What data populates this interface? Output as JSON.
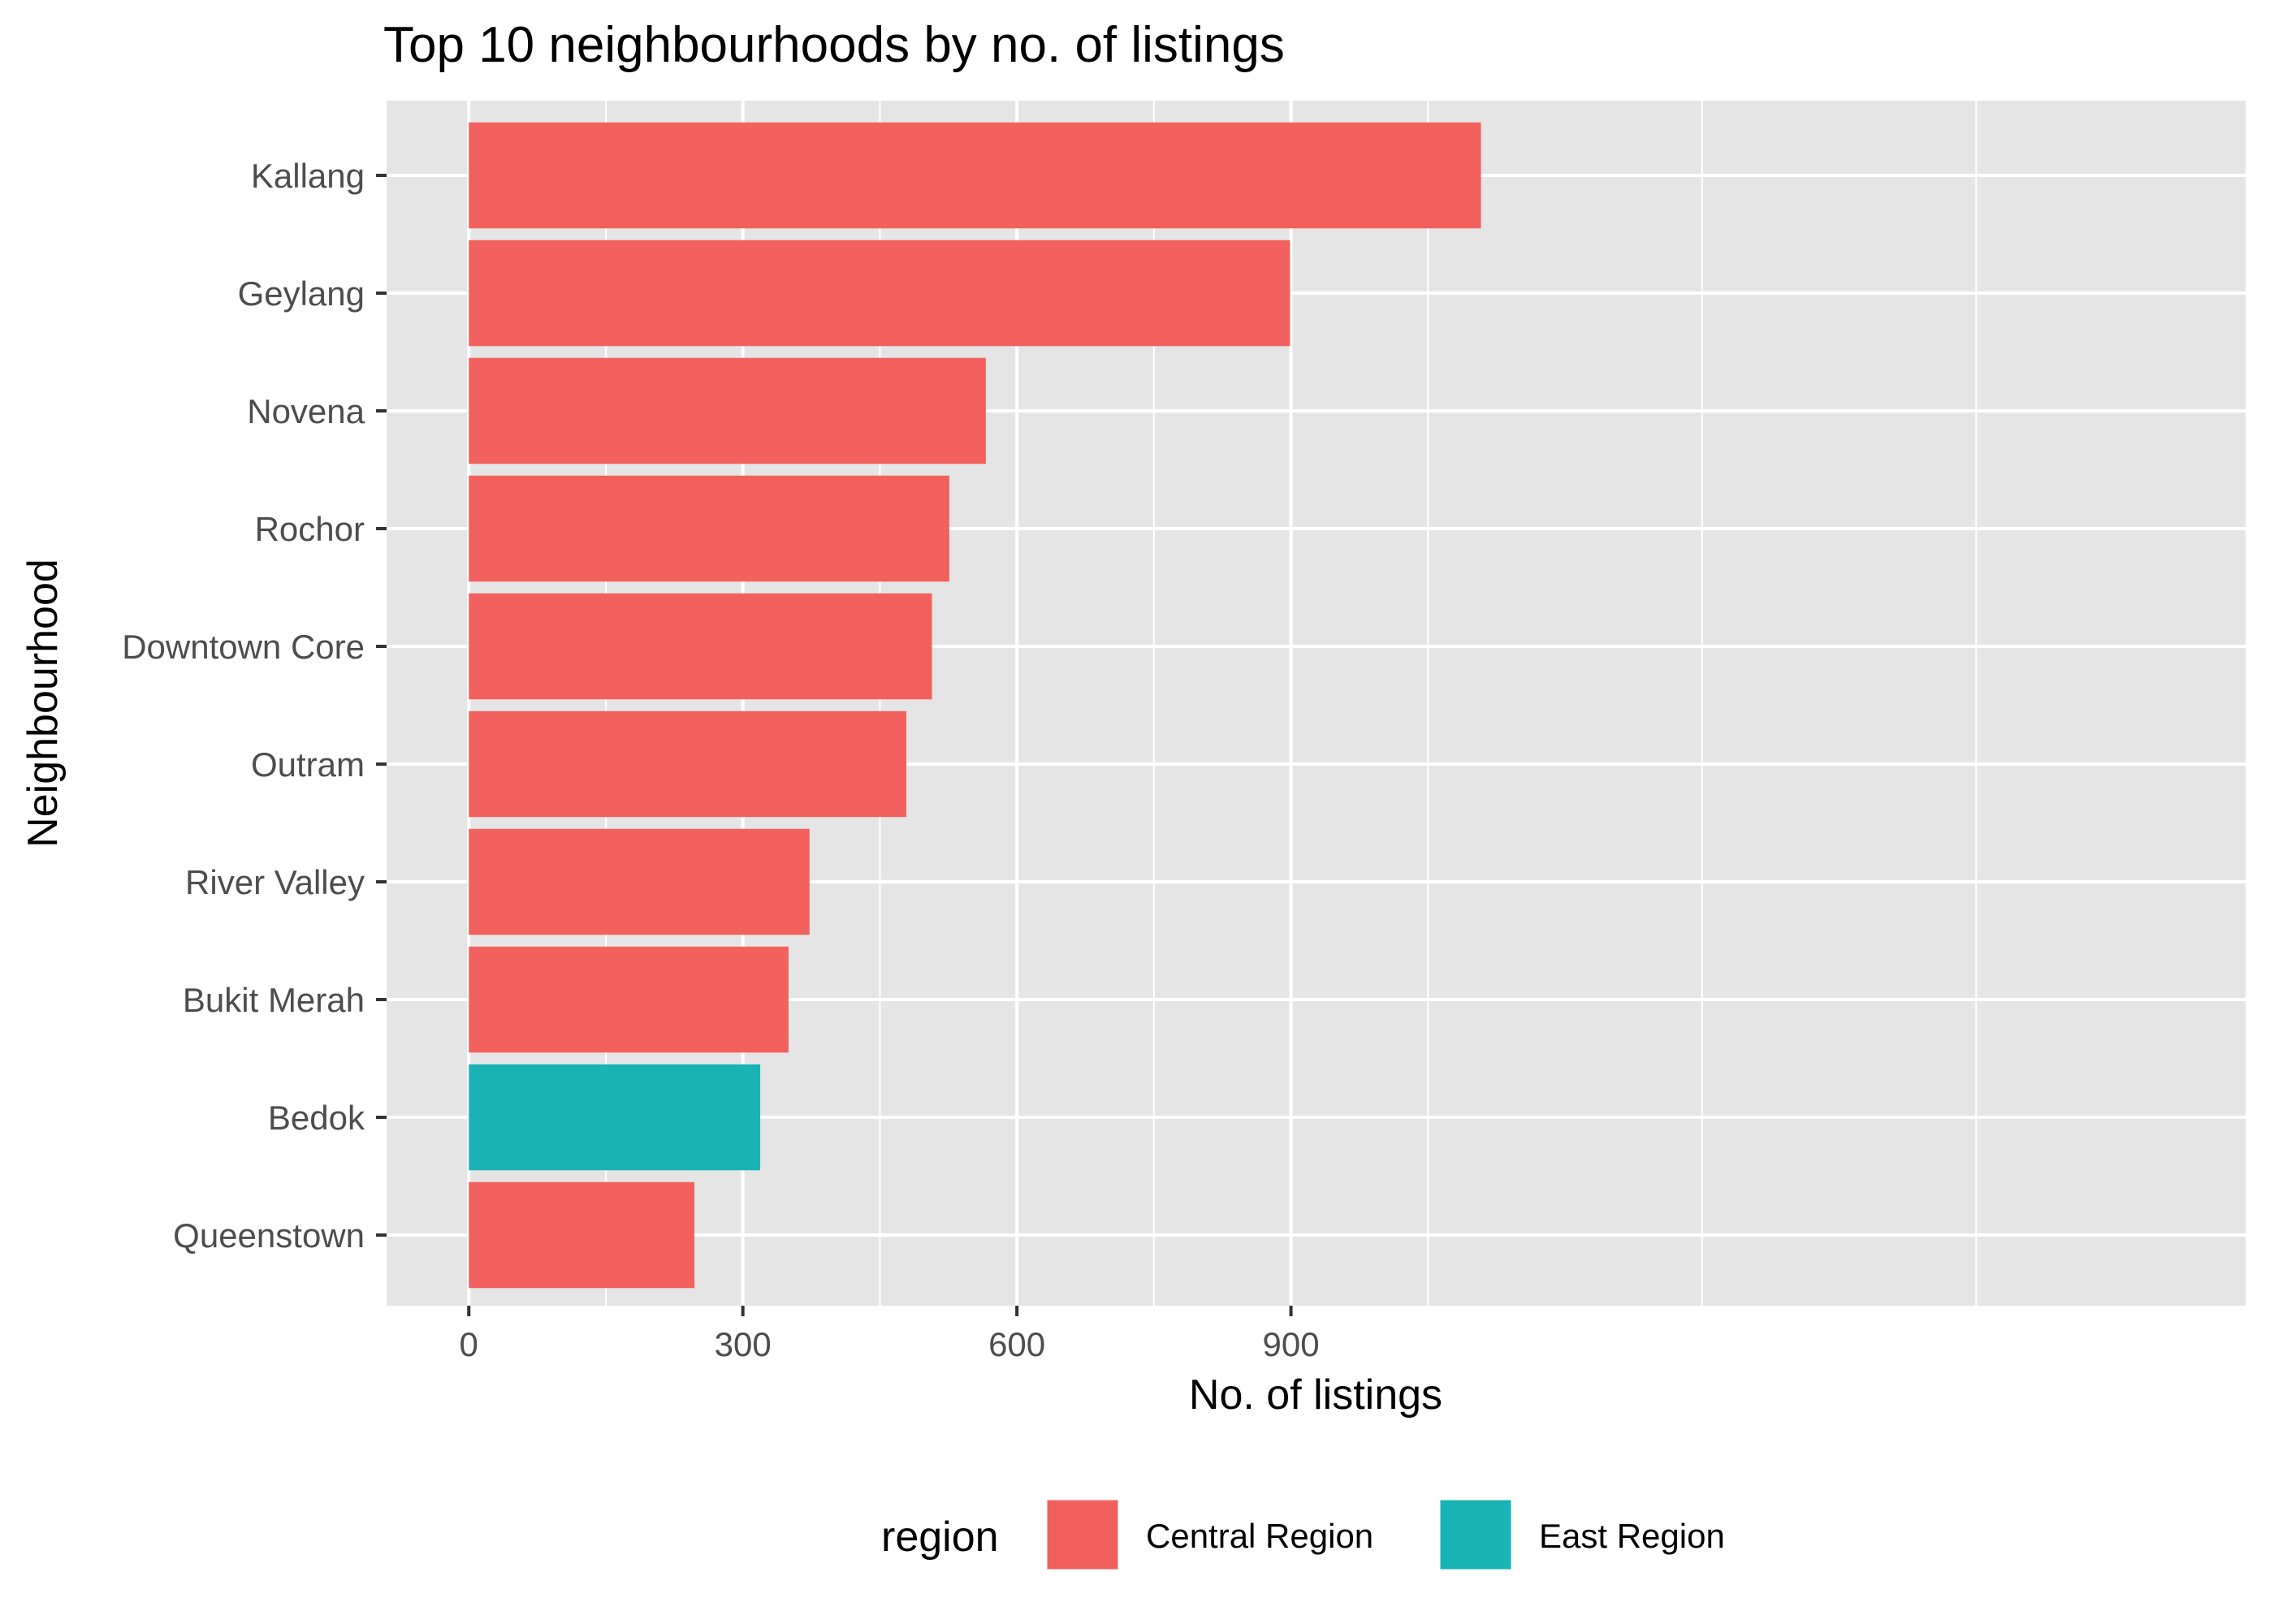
{
  "chart_data": {
    "type": "bar",
    "orientation": "horizontal",
    "title": "Top 10 neighbourhoods by no. of listings",
    "xlabel": "No. of listings",
    "ylabel": "Neighbourhood",
    "xlim": [
      -90,
      1945
    ],
    "x_ticks": [
      0,
      300,
      600,
      900
    ],
    "categories": [
      "Kallang",
      "Geylang",
      "Novena",
      "Rochor",
      "Downtown Core",
      "Outram",
      "River Valley",
      "Bukit Merah",
      "Bedok",
      "Queenstown"
    ],
    "values": [
      1108,
      899,
      566,
      526,
      507,
      479,
      373,
      350,
      319,
      247
    ],
    "region": [
      "Central Region",
      "Central Region",
      "Central Region",
      "Central Region",
      "Central Region",
      "Central Region",
      "Central Region",
      "Central Region",
      "East Region",
      "Central Region"
    ],
    "legend": {
      "title": "region",
      "position": "bottom",
      "items": [
        {
          "label": "Central Region",
          "color": "#F2615D"
        },
        {
          "label": "East Region",
          "color": "#19B3B6"
        }
      ]
    },
    "grid": true,
    "colors": {
      "panel_background": "#E5E5E5",
      "grid": "#FFFFFF",
      "axis_text": "#4D4D4D"
    }
  }
}
